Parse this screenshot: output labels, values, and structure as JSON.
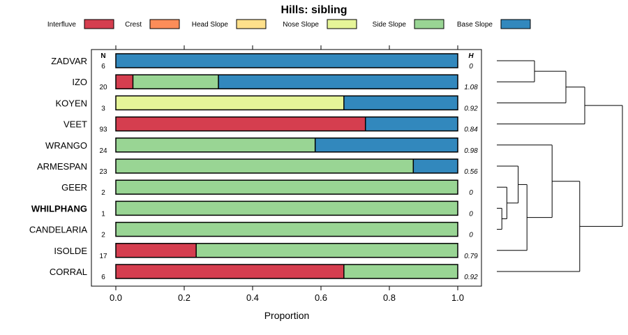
{
  "chart_data": {
    "type": "bar",
    "stacked": true,
    "orientation": "horizontal",
    "title": "Hills: sibling",
    "xlabel": "Proportion",
    "xlim": [
      0,
      1
    ],
    "xticks": [
      "0.0",
      "0.2",
      "0.4",
      "0.6",
      "0.8",
      "1.0"
    ],
    "n_header": "N",
    "h_header": "H",
    "legend": [
      {
        "name": "Interfluve",
        "color": "#D53E4F"
      },
      {
        "name": "Crest",
        "color": "#FC8D59"
      },
      {
        "name": "Head Slope",
        "color": "#FEE08B"
      },
      {
        "name": "Nose Slope",
        "color": "#E6F598"
      },
      {
        "name": "Side Slope",
        "color": "#99D594"
      },
      {
        "name": "Base Slope",
        "color": "#3288BD"
      }
    ],
    "categories": [
      {
        "label": "ZADVAR",
        "bold": false,
        "n": "6",
        "h": "0",
        "values": [
          0,
          0,
          0,
          0,
          0,
          1.0
        ]
      },
      {
        "label": "IZO",
        "bold": false,
        "n": "20",
        "h": "1.08",
        "values": [
          0.05,
          0,
          0,
          0,
          0.25,
          0.7
        ]
      },
      {
        "label": "KOYEN",
        "bold": false,
        "n": "3",
        "h": "0.92",
        "values": [
          0,
          0,
          0,
          0.667,
          0,
          0.333
        ]
      },
      {
        "label": "VEET",
        "bold": false,
        "n": "93",
        "h": "0.84",
        "values": [
          0.73,
          0,
          0,
          0,
          0,
          0.27
        ]
      },
      {
        "label": "WRANGO",
        "bold": false,
        "n": "24",
        "h": "0.98",
        "values": [
          0,
          0,
          0,
          0,
          0.583,
          0.417
        ]
      },
      {
        "label": "ARMESPAN",
        "bold": false,
        "n": "23",
        "h": "0.56",
        "values": [
          0,
          0,
          0,
          0,
          0.87,
          0.13
        ]
      },
      {
        "label": "GEER",
        "bold": false,
        "n": "2",
        "h": "0",
        "values": [
          0,
          0,
          0,
          0,
          1.0,
          0
        ]
      },
      {
        "label": "WHILPHANG",
        "bold": true,
        "n": "1",
        "h": "0",
        "values": [
          0,
          0,
          0,
          0,
          1.0,
          0
        ]
      },
      {
        "label": "CANDELARIA",
        "bold": false,
        "n": "2",
        "h": "0",
        "values": [
          0,
          0,
          0,
          0,
          1.0,
          0
        ]
      },
      {
        "label": "ISOLDE",
        "bold": false,
        "n": "17",
        "h": "0.79",
        "values": [
          0.235,
          0,
          0,
          0,
          0.765,
          0
        ]
      },
      {
        "label": "CORRAL",
        "bold": false,
        "n": "6",
        "h": "0.92",
        "values": [
          0.667,
          0,
          0,
          0,
          0.333,
          0
        ]
      }
    ],
    "dendrogram": {
      "type": "hierarchical-clustering",
      "leaf_order": [
        "ZADVAR",
        "IZO",
        "KOYEN",
        "VEET",
        "WRANGO",
        "ARMESPAN",
        "GEER",
        "WHILPHANG",
        "CANDELARIA",
        "ISOLDE",
        "CORRAL"
      ],
      "merges": [
        {
          "a": "ZADVAR",
          "b": "IZO",
          "height": 0.3
        },
        {
          "a": "m0",
          "b": "KOYEN",
          "height": 0.55
        },
        {
          "a": "m1",
          "b": "VEET",
          "height": 0.7
        },
        {
          "a": "WHILPHANG",
          "b": "CANDELARIA",
          "height": 0.04
        },
        {
          "a": "GEER",
          "b": "m3",
          "height": 0.08
        },
        {
          "a": "m4",
          "b": "ARMESPAN",
          "height": 0.17
        },
        {
          "a": "m5",
          "b": "ISOLDE",
          "height": 0.24
        },
        {
          "a": "WRANGO",
          "b": "m6",
          "height": 0.44
        },
        {
          "a": "m7",
          "b": "CORRAL",
          "height": 0.66
        },
        {
          "a": "m2",
          "b": "m8",
          "height": 1.0
        }
      ]
    }
  }
}
